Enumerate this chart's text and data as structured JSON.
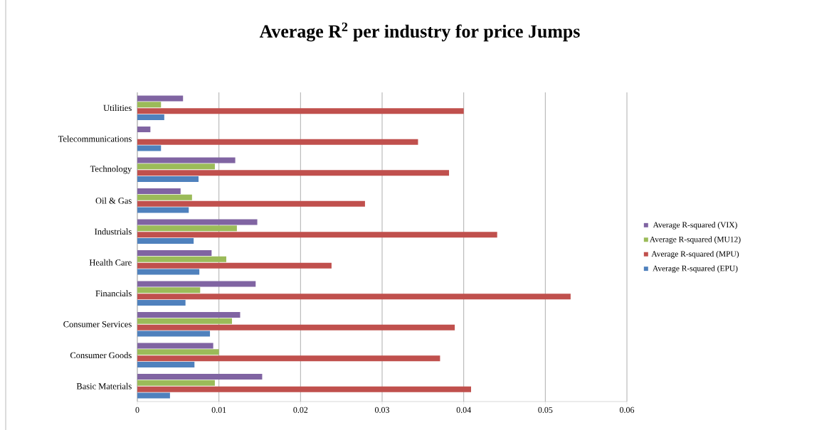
{
  "chart_data": {
    "type": "bar",
    "orientation": "horizontal",
    "title": "Average R$^{2}$ per industry for price Jumps",
    "categories": [
      "Utilities",
      "Telecommunications",
      "Technology",
      "Oil & Gas",
      "Industrials",
      "Health Care",
      "Financials",
      "Consumer Services",
      "Consumer Goods",
      "Basic Materials"
    ],
    "series": [
      {
        "name": "Average R-squared (EPU)",
        "color": "#4f81bd",
        "values": [
          0.0033,
          0.0029,
          0.0075,
          0.0063,
          0.0069,
          0.0076,
          0.0059,
          0.0089,
          0.007,
          0.004
        ]
      },
      {
        "name": "Average R-squared (MPU)",
        "color": "#c0504d",
        "values": [
          0.04,
          0.0344,
          0.0382,
          0.0279,
          0.0441,
          0.0238,
          0.0531,
          0.0389,
          0.0371,
          0.0409
        ]
      },
      {
        "name": "Average R-squared (MU12)",
        "color": "#9bbb59",
        "values": [
          0.0029,
          null,
          0.0095,
          0.0067,
          0.0122,
          0.0109,
          0.0077,
          0.0116,
          0.01,
          0.0095
        ]
      },
      {
        "name": "Average R-squared (VIX)",
        "color": "#8064a2",
        "values": [
          0.0056,
          0.0016,
          0.012,
          0.0053,
          0.0147,
          0.0091,
          0.0145,
          0.0126,
          0.0093,
          0.0153
        ]
      }
    ],
    "xlim": [
      0,
      0.06
    ],
    "xticks": [
      0,
      0.01,
      0.02,
      0.03,
      0.04,
      0.05,
      0.06
    ],
    "grid": "x",
    "legend": "right"
  }
}
